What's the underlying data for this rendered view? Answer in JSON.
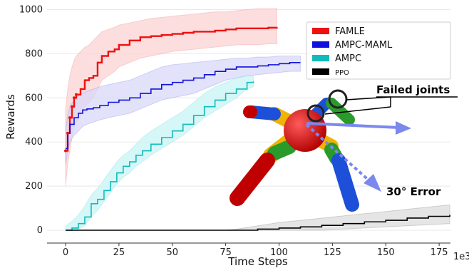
{
  "chart_data": {
    "type": "line",
    "xlabel": "Time Steps",
    "ylabel": "Rewards",
    "x_multiplier_label": "1e3",
    "xlim": [
      -8,
      180
    ],
    "ylim": [
      -60,
      1010
    ],
    "xticks": [
      0,
      25,
      50,
      75,
      100,
      125,
      150,
      175
    ],
    "yticks": [
      0,
      200,
      400,
      600,
      800,
      1000
    ],
    "grid": true,
    "legend_position": "top-right",
    "series": [
      {
        "name": "FAMLE",
        "color": "#ee1111",
        "band_color": "#fbd3d3",
        "x": [
          0,
          1,
          2,
          3,
          4,
          5,
          7,
          9,
          11,
          13,
          15,
          17,
          20,
          23,
          25,
          30,
          35,
          40,
          45,
          50,
          55,
          60,
          65,
          70,
          75,
          80,
          85,
          90,
          95,
          99
        ],
        "y": [
          360,
          440,
          510,
          560,
          600,
          615,
          640,
          680,
          690,
          700,
          760,
          790,
          810,
          820,
          840,
          860,
          875,
          880,
          885,
          890,
          895,
          900,
          900,
          905,
          910,
          915,
          915,
          915,
          918,
          920
        ],
        "band_upper": [
          550,
          640,
          700,
          740,
          770,
          790,
          810,
          830,
          840,
          860,
          880,
          900,
          910,
          920,
          930,
          940,
          950,
          960,
          965,
          970,
          975,
          980,
          985,
          990,
          990,
          995,
          1000,
          1005,
          1005,
          1005
        ],
        "band_lower": [
          200,
          300,
          360,
          420,
          460,
          490,
          520,
          560,
          580,
          600,
          640,
          680,
          700,
          720,
          740,
          760,
          780,
          790,
          800,
          810,
          815,
          820,
          825,
          830,
          835,
          840,
          840,
          840,
          845,
          845
        ]
      },
      {
        "name": "AMPC-MAML",
        "color": "#1111dd",
        "band_color": "#d8d8f8",
        "x": [
          0,
          1,
          2,
          4,
          6,
          8,
          10,
          13,
          16,
          20,
          25,
          30,
          35,
          40,
          45,
          50,
          55,
          60,
          65,
          70,
          75,
          80,
          85,
          90,
          95,
          100,
          105,
          110
        ],
        "y": [
          370,
          440,
          480,
          510,
          530,
          545,
          550,
          555,
          565,
          580,
          590,
          600,
          620,
          640,
          660,
          670,
          680,
          690,
          705,
          720,
          730,
          740,
          740,
          745,
          750,
          755,
          760,
          760
        ],
        "band_upper": [
          450,
          520,
          560,
          590,
          610,
          620,
          630,
          640,
          650,
          660,
          670,
          680,
          700,
          720,
          740,
          750,
          755,
          760,
          765,
          770,
          775,
          780,
          780,
          785,
          785,
          790,
          790,
          790
        ],
        "band_lower": [
          300,
          360,
          400,
          430,
          450,
          470,
          480,
          490,
          500,
          510,
          520,
          530,
          550,
          570,
          590,
          600,
          610,
          620,
          640,
          660,
          680,
          690,
          700,
          705,
          710,
          715,
          720,
          720
        ]
      },
      {
        "name": "AMPC",
        "color": "#11bbbb",
        "band_color": "#c8f4f4",
        "x": [
          0,
          3,
          6,
          9,
          12,
          15,
          18,
          21,
          24,
          27,
          30,
          33,
          36,
          40,
          45,
          50,
          55,
          60,
          65,
          70,
          75,
          80,
          85,
          88
        ],
        "y": [
          0,
          10,
          30,
          60,
          120,
          140,
          180,
          220,
          260,
          290,
          310,
          340,
          360,
          390,
          420,
          450,
          480,
          520,
          560,
          590,
          620,
          640,
          670,
          675
        ],
        "band_upper": [
          20,
          40,
          70,
          110,
          160,
          190,
          230,
          270,
          310,
          340,
          360,
          390,
          420,
          450,
          480,
          510,
          540,
          580,
          620,
          650,
          670,
          690,
          700,
          700
        ],
        "band_lower": [
          0,
          0,
          5,
          20,
          60,
          90,
          130,
          170,
          210,
          240,
          260,
          290,
          310,
          340,
          370,
          400,
          430,
          470,
          510,
          540,
          570,
          600,
          640,
          650
        ]
      },
      {
        "name": "PPO",
        "color": "#000000",
        "band_color": "#dcdcdc",
        "x": [
          0,
          20,
          40,
          60,
          75,
          80,
          90,
          100,
          110,
          120,
          130,
          140,
          150,
          160,
          170,
          180
        ],
        "y": [
          0,
          0,
          0,
          0,
          0,
          0,
          5,
          10,
          15,
          22,
          30,
          38,
          45,
          55,
          63,
          70
        ],
        "band_upper": [
          0,
          0,
          0,
          0,
          0,
          5,
          20,
          35,
          45,
          55,
          65,
          75,
          85,
          95,
          105,
          115
        ],
        "band_lower": [
          0,
          0,
          0,
          0,
          0,
          0,
          0,
          0,
          0,
          0,
          5,
          10,
          15,
          20,
          25,
          30
        ]
      }
    ],
    "annotations": [
      {
        "text": "Failed joints"
      },
      {
        "text": "30° Error"
      }
    ]
  }
}
